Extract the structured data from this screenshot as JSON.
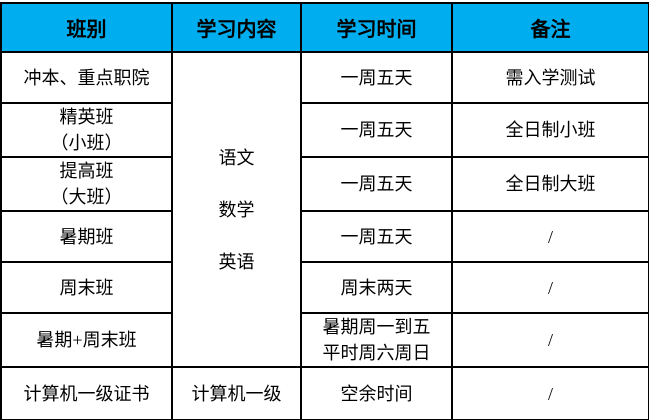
{
  "colors": {
    "header_background": "#00AEEF",
    "border": "#000000",
    "text": "#000000",
    "page_background": "#ffffff"
  },
  "table": {
    "headers": {
      "class_type": "班别",
      "study_content": "学习内容",
      "study_time": "学习时间",
      "remarks": "备注"
    },
    "merged_subjects": "语文\n数学\n英语",
    "rows": [
      {
        "class_name": "冲本、重点职院",
        "time": "一周五天",
        "note": "需入学测试"
      },
      {
        "class_name": "精英班\n（小班）",
        "time": "一周五天",
        "note": "全日制小班"
      },
      {
        "class_name": "提高班\n（大班）",
        "time": "一周五天",
        "note": "全日制大班"
      },
      {
        "class_name": "暑期班",
        "time": "一周五天",
        "note": "/"
      },
      {
        "class_name": "周末班",
        "time": "周末两天",
        "note": "/"
      },
      {
        "class_name": "暑期+周末班",
        "time": "暑期周一到五\n平时周六周日",
        "note": "/"
      },
      {
        "class_name": "计算机一级证书",
        "content": "计算机一级",
        "time": "空余时间",
        "note": "/"
      }
    ]
  }
}
